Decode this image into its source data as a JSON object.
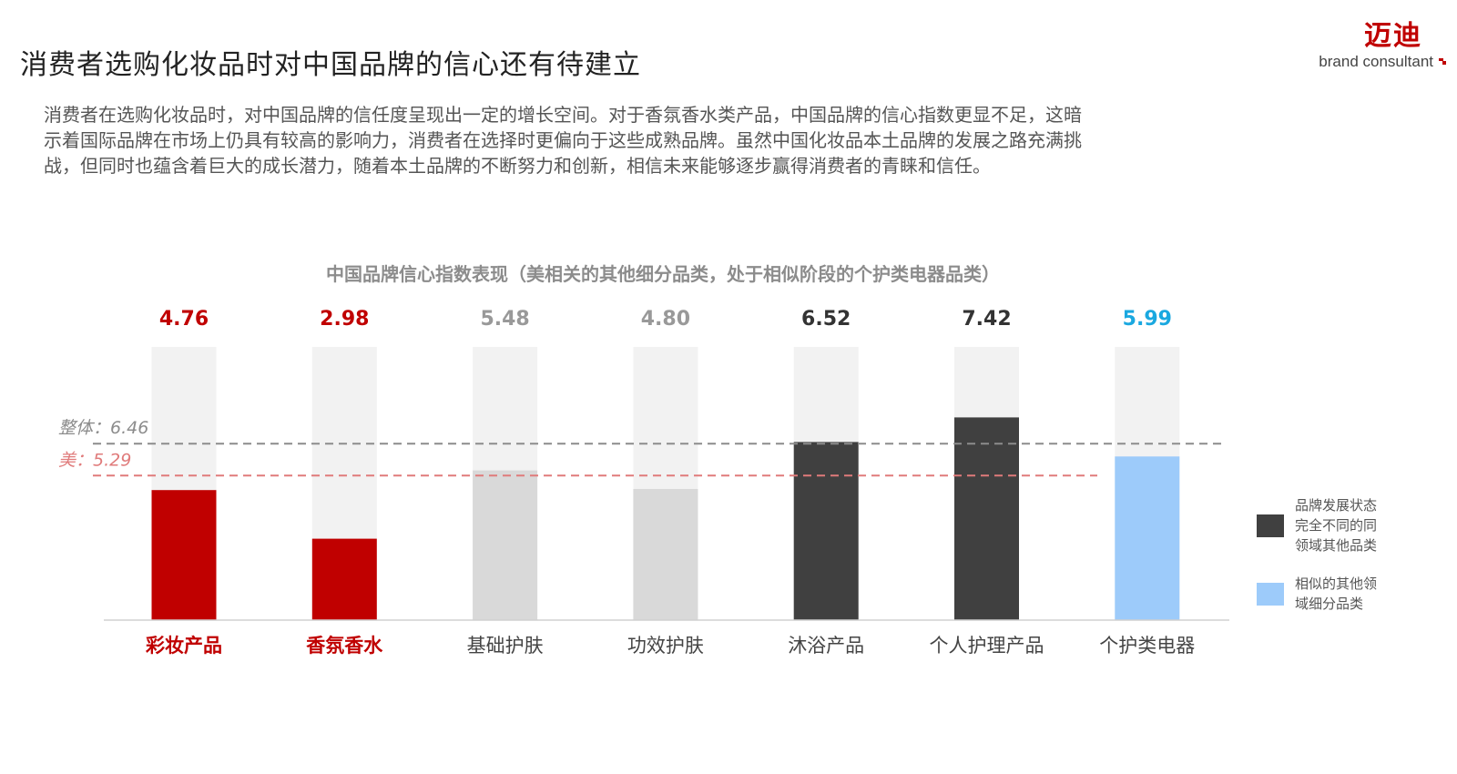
{
  "header": {
    "title": "消费者选购化妆品时对中国品牌的信心还有待建立",
    "logo_cn": "迈迪",
    "logo_en": "brand consultant"
  },
  "description": [
    "消费者在选购化妆品时，对中国品牌的信任度呈现出一定的增长空间。对于香氛香水类产品，中国品牌的信心指数更显不足，这暗",
    "示着国际品牌在市场上仍具有较高的影响力，消费者在选择时更偏向于这些成熟品牌。虽然中国化妆品本土品牌的发展之路充满挑",
    "战，但同时也蕴含着巨大的成长潜力，随着本土品牌的不断努力和创新，相信未来能够逐步赢得消费者的青睐和信任。"
  ],
  "legend": [
    {
      "lines": [
        "品牌发展状态",
        "完全不同的同",
        "领域其他品类"
      ],
      "color": "#404040"
    },
    {
      "lines": [
        "相似的其他领",
        "域细分品类"
      ],
      "color": "#9dcbfa"
    }
  ],
  "chart_data": {
    "type": "bar",
    "title": "中国品牌信心指数表现（美相关的其他细分品类，处于相似阶段的个护类电器品类）",
    "categories": [
      "彩妆产品",
      "香氛香水",
      "基础护肤",
      "功效护肤",
      "沐浴产品",
      "个人护理产品",
      "个护类电器"
    ],
    "value_labels": [
      "4.76",
      "2.98",
      "5.48",
      "4.80",
      "6.52",
      "7.42",
      "5.99"
    ],
    "values": [
      4.76,
      2.98,
      5.48,
      4.8,
      6.52,
      7.42,
      5.99
    ],
    "ylim": [
      0,
      10
    ],
    "bar_colors": [
      "#c00000",
      "#c00000",
      "#d9d9d9",
      "#d9d9d9",
      "#404040",
      "#404040",
      "#9dcbfa"
    ],
    "value_label_colors": [
      "#c00000",
      "#c00000",
      "#999999",
      "#999999",
      "#333333",
      "#333333",
      "#1aa8e0"
    ],
    "category_label_colors": [
      "#c00000",
      "#c00000",
      "#444444",
      "#444444",
      "#444444",
      "#444444",
      "#444444"
    ],
    "category_bold": [
      true,
      true,
      false,
      false,
      false,
      false,
      false
    ],
    "background_color": "#f2f2f2",
    "reference_lines": [
      {
        "label": "整体：6.46",
        "value": 6.46,
        "color": "#8c8c8c"
      },
      {
        "label": "美：5.29",
        "value": 5.29,
        "color": "#e07b7b"
      }
    ]
  }
}
